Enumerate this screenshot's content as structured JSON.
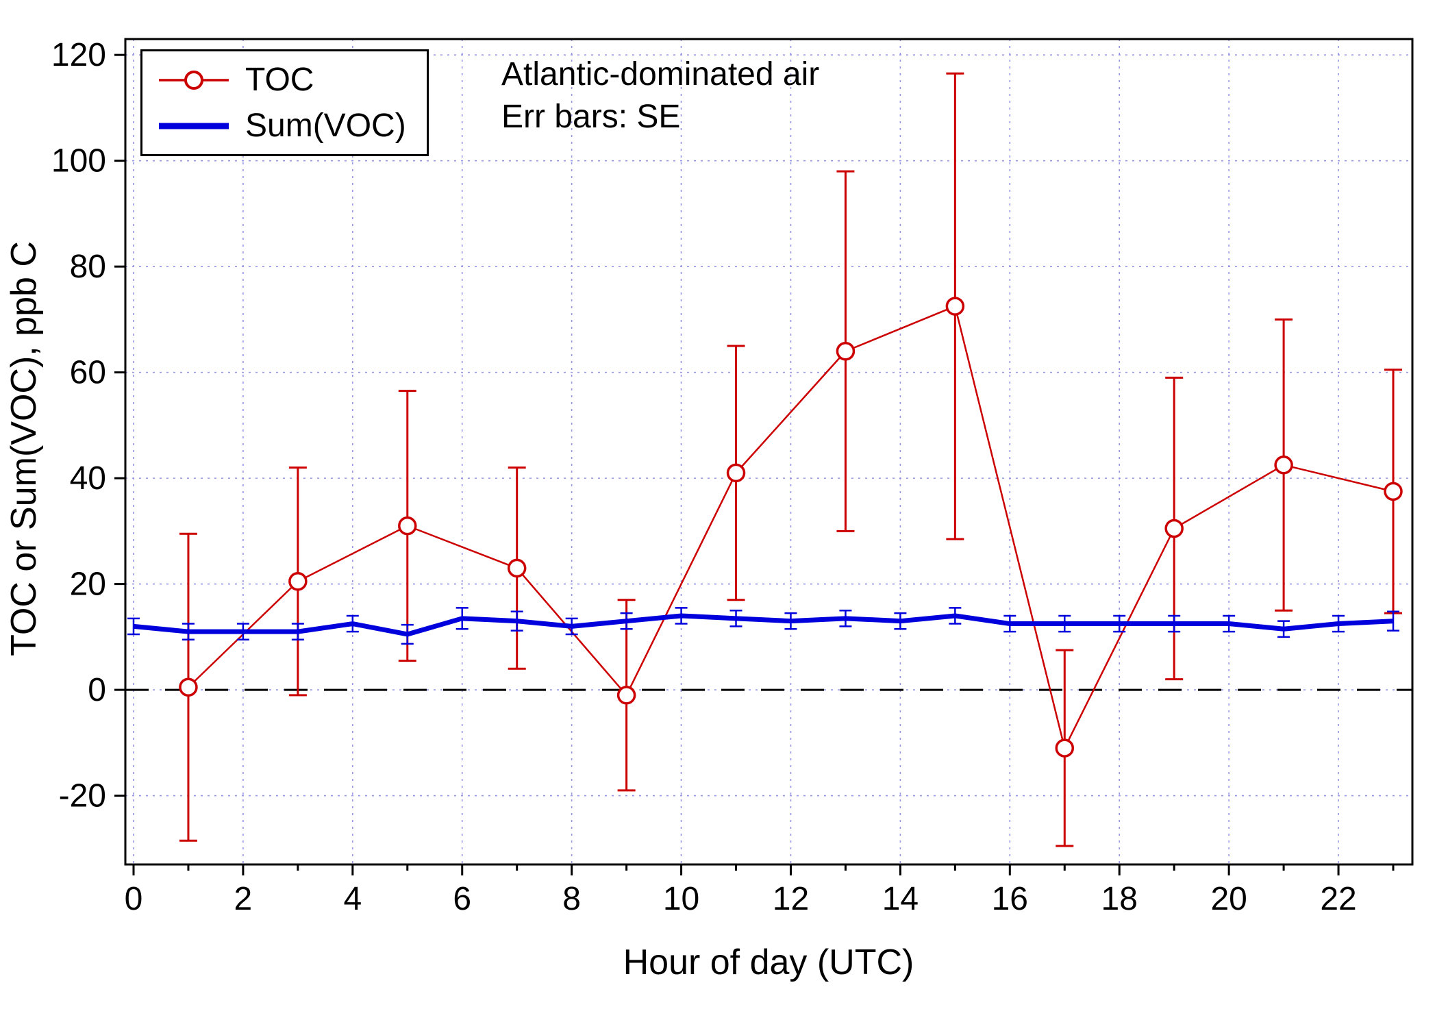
{
  "legend": {
    "toc_label": "TOC",
    "voc_label": "Sum(VOC)"
  },
  "annotations": {
    "line1": "Atlantic-dominated air",
    "line2": "Err bars: SE"
  },
  "axes": {
    "x_label": "Hour of day (UTC)",
    "y_label": "TOC or Sum(VOC), ppb C"
  },
  "colors": {
    "toc": "#cc0000",
    "voc": "#0000dd",
    "grid": "#9595e5",
    "axis": "#000000",
    "zero_line": "#000000"
  },
  "chart_data": {
    "type": "line",
    "error_bars": "SE",
    "xlim": [
      -0.15,
      23.35
    ],
    "ylim": [
      -33,
      123
    ],
    "x_ticks": [
      0,
      2,
      4,
      6,
      8,
      10,
      12,
      14,
      16,
      18,
      20,
      22
    ],
    "x_minor_ticks": [
      1,
      3,
      5,
      7,
      9,
      11,
      13,
      15,
      17,
      19,
      21,
      23
    ],
    "y_ticks": [
      -20,
      0,
      20,
      40,
      60,
      80,
      100,
      120
    ],
    "xlabel": "Hour of day (UTC)",
    "ylabel": "TOC or Sum(VOC), ppb C",
    "series": [
      {
        "name": "TOC",
        "color_key": "toc",
        "marker": "open-circle",
        "line_width": 2.5,
        "err_width": 3,
        "cap_half": 13,
        "x": [
          1,
          3,
          5,
          7,
          9,
          11,
          13,
          15,
          17,
          19,
          21,
          23
        ],
        "y": [
          0.5,
          20.5,
          31,
          23,
          -1,
          41,
          64,
          72.5,
          -11,
          30.5,
          42.5,
          37.5
        ],
        "err": [
          29,
          21.5,
          25.5,
          19,
          18,
          24,
          34,
          44,
          18.5,
          28.5,
          27.5,
          23
        ]
      },
      {
        "name": "Sum(VOC)",
        "color_key": "voc",
        "marker": "none",
        "line_width": 7,
        "err_width": 2.5,
        "cap_half": 9,
        "x": [
          0,
          1,
          2,
          3,
          4,
          5,
          6,
          7,
          8,
          9,
          10,
          11,
          12,
          13,
          14,
          15,
          16,
          17,
          18,
          19,
          20,
          21,
          22,
          23
        ],
        "y": [
          12,
          11,
          11,
          11,
          12.5,
          10.5,
          13.5,
          13,
          12,
          13,
          14,
          13.5,
          13,
          13.5,
          13,
          14,
          12.5,
          12.5,
          12.5,
          12.5,
          12.5,
          11.5,
          12.5,
          13
        ],
        "err": [
          1.5,
          1.5,
          1.5,
          1.5,
          1.5,
          1.8,
          2,
          1.8,
          1.5,
          1.5,
          1.5,
          1.5,
          1.5,
          1.5,
          1.5,
          1.5,
          1.5,
          1.5,
          1.5,
          1.5,
          1.5,
          1.5,
          1.5,
          1.8
        ]
      }
    ]
  }
}
